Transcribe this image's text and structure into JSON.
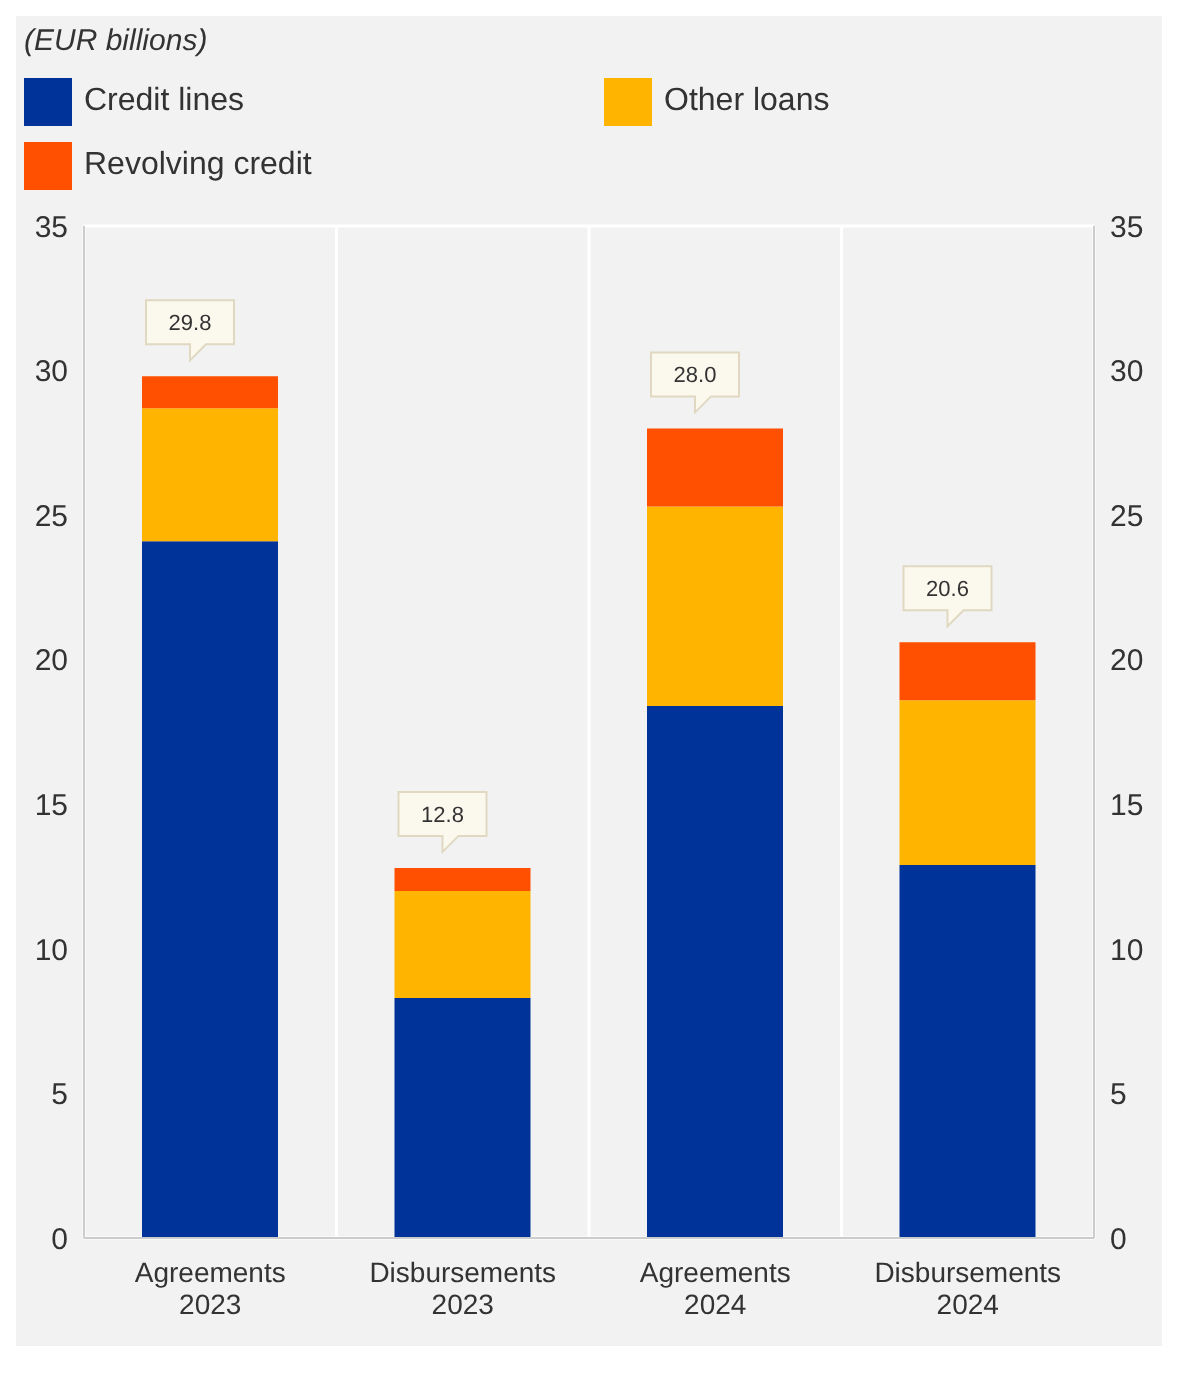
{
  "chart_data": {
    "type": "bar",
    "subtitle": "(EUR billions)",
    "stacked": true,
    "categories": [
      "Agreements\n2023",
      "Disbursements\n2023",
      "Agreements\n2024",
      "Disbursements\n2024"
    ],
    "series": [
      {
        "name": "Credit lines",
        "color": "#003399",
        "values": [
          24.1,
          8.3,
          18.4,
          12.9
        ]
      },
      {
        "name": "Other loans",
        "color": "#ffb400",
        "values": [
          4.6,
          3.7,
          6.9,
          5.7
        ]
      },
      {
        "name": "Revolving credit",
        "color": "#ff4f00",
        "values": [
          1.1,
          0.8,
          2.7,
          2.0
        ]
      }
    ],
    "totals": [
      "29.8",
      "12.8",
      "28.0",
      "20.6"
    ],
    "ylim": [
      0,
      35
    ],
    "yticks": [
      0,
      5,
      10,
      15,
      20,
      25,
      30,
      35
    ],
    "y2lim": [
      0,
      35
    ],
    "y2ticks": [
      0,
      5,
      10,
      15,
      20,
      25,
      30,
      35
    ],
    "grid": true,
    "legend": "top left"
  }
}
